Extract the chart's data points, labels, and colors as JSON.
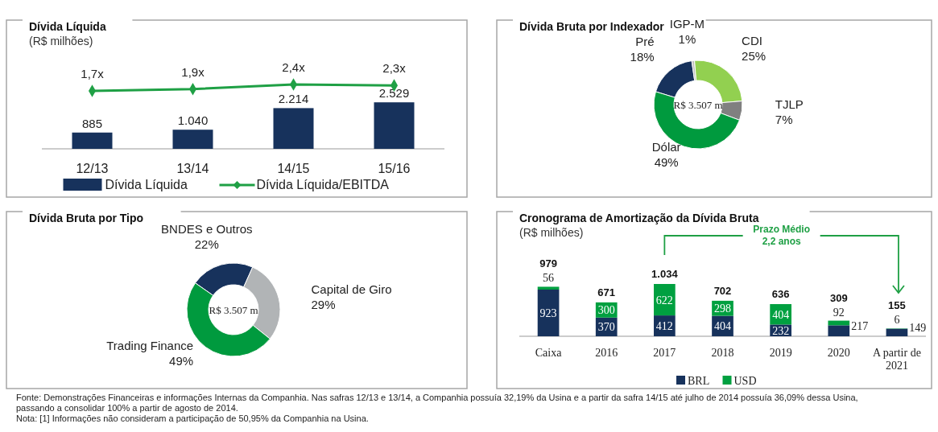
{
  "chart_data": [
    {
      "type": "bar",
      "title": "Dívida Líquida",
      "subtitle": "(R$ milhões)",
      "categories": [
        "12/13",
        "13/14",
        "14/15",
        "15/16"
      ],
      "marker": "diamond",
      "legend": "bottom",
      "ylim": [
        0,
        7000
      ],
      "y2lim": [
        -4.6,
        9.4
      ],
      "tick_labels": "x",
      "series": [
        {
          "name": "Dívida Líquida",
          "type": "bar",
          "color": "#17325c",
          "values": [
            885,
            1040,
            2214,
            2529
          ],
          "value_labels": [
            "885",
            "1.040",
            "2.214",
            "2.529"
          ]
        },
        {
          "name": "Dívida Líquida/EBITDA",
          "type": "line",
          "axis": "y2",
          "color": "#1fa045",
          "values": [
            1.7,
            1.9,
            2.4,
            2.3
          ],
          "value_labels": [
            "1,7x",
            "1,9x",
            "2,4x",
            "2,3x"
          ]
        }
      ]
    },
    {
      "type": "donut",
      "title": "Dívida Bruta por Indexador",
      "categories": [
        "Pré",
        "IGP-M",
        "CDI",
        "TJLP",
        "Dólar"
      ],
      "values": [
        18,
        1,
        25,
        7,
        49
      ],
      "value_labels": [
        "18%",
        "1%",
        "25%",
        "7%",
        "49%"
      ],
      "colors": [
        "#17325c",
        "#c0c0c0",
        "#92d050",
        "#808080",
        "#009a3e"
      ],
      "annotations": [
        "R$ 3.507 m"
      ]
    },
    {
      "type": "donut",
      "title": "Dívida Bruta por Tipo",
      "categories": [
        "BNDES e Outros",
        "Capital de Giro",
        "Trading Finance"
      ],
      "values": [
        22,
        29,
        49
      ],
      "value_labels": [
        "22%",
        "29%",
        "49%"
      ],
      "colors": [
        "#17325c",
        "#b1b4b6",
        "#009a3e"
      ],
      "annotations": [
        "R$ 3.507 m"
      ]
    },
    {
      "type": "bar",
      "title": "Cronograma de Amortização da Dívida Bruta",
      "subtitle": "(R$ milhões)",
      "stacked": true,
      "data_labels": true,
      "legend": "bottom",
      "categories": [
        "Caixa",
        "2016",
        "2017",
        "2018",
        "2019",
        "2020",
        "A partir de 2021"
      ],
      "series": [
        {
          "name": "BRL",
          "color": "#17325c",
          "values": [
            923,
            370,
            412,
            404,
            232,
            217,
            149
          ]
        },
        {
          "name": "USD",
          "color": "#00a040",
          "values": [
            56,
            300,
            622,
            298,
            404,
            92,
            6
          ]
        }
      ],
      "totals": [
        "979",
        "671",
        "1.034",
        "702",
        "636",
        "309",
        "155"
      ],
      "annotations": [
        "Prazo Médio 2,2 anos",
        "Fonte: Demonstrações Financeiras e informações Internas da Companhia. Nas safras 12/13 e 13/14, a Companhia possuía 32,19% da Usina e a partir da safra 14/15 até julho de 2014 possuía 36,09% dessa Usina, passando a consolidar 100% a partir de agosto de 2014.",
        "Nota: [1] Informações não consideram a participação de 50,95% da Companhia na Usina."
      ]
    }
  ]
}
